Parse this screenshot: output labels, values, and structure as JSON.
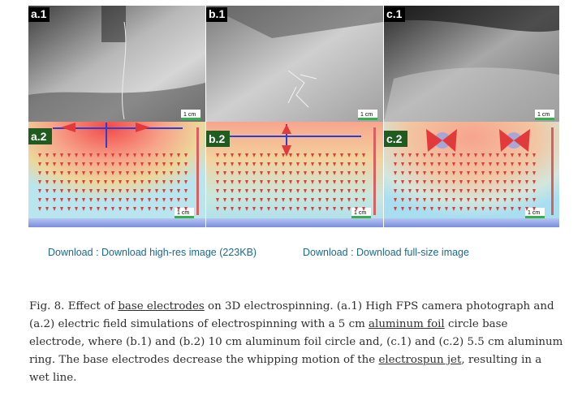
{
  "figure": {
    "panel_labels": {
      "a1": "a.1",
      "b1": "b.1",
      "c1": "c.1",
      "a2": "a.2",
      "b2": "b.2",
      "c2": "c.2"
    },
    "scale_label": "1 cm"
  },
  "downloads": {
    "high_res": "Download : Download high-res image (223KB)",
    "full_size": "Download : Download full-size image"
  },
  "caption": {
    "part1": "Fig. 8. Effect of ",
    "link1": "base electrodes",
    "part2": " on 3D electrospinning. (a.1) High FPS camera photograph and (a.2) electric field simulations of electrospinning with a 5 cm ",
    "link2": "aluminum foil",
    "part3": " circle base electrode, where (b.1) and (b.2) 10 cm aluminum foil circle and, (c.1) and (c.2) 5.5 cm aluminum ring. The base electrodes decrease the whipping motion of the ",
    "link3": "electrospun jet",
    "part4": ", resulting in a wet line."
  }
}
